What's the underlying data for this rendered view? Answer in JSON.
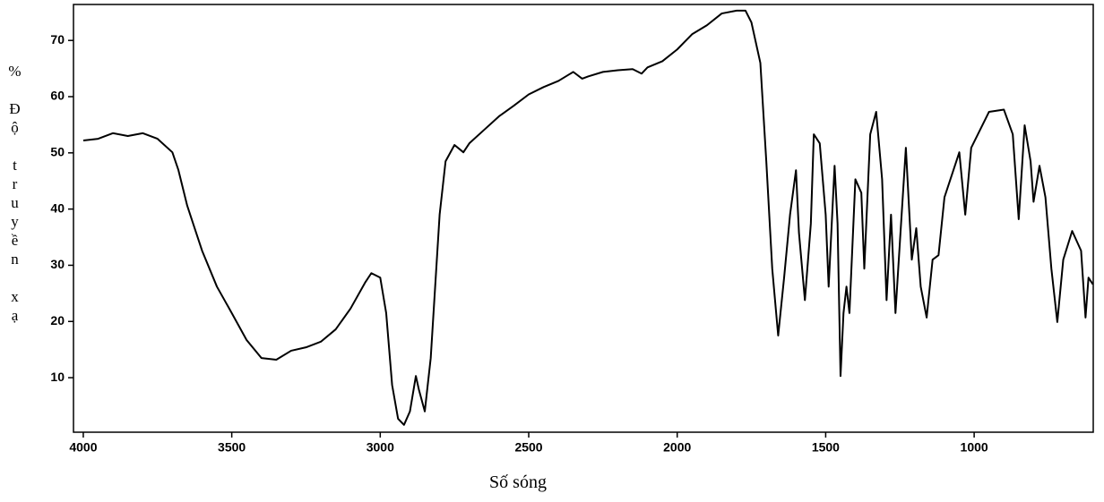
{
  "chart_data": {
    "type": "line",
    "x_label": "Số sóng",
    "y_label": "% Độ truyền xạ",
    "xlim": [
      4033,
      599
    ],
    "ylim": [
      0.3,
      76.4
    ],
    "xticks": [
      4000,
      3500,
      3000,
      2500,
      2000,
      1500,
      1000
    ],
    "yticks": [
      10,
      20,
      30,
      40,
      50,
      60,
      70
    ],
    "series": [
      {
        "color": "#000000",
        "x": [
          4000,
          3950,
          3900,
          3850,
          3800,
          3750,
          3700,
          3680,
          3650,
          3600,
          3550,
          3500,
          3450,
          3400,
          3350,
          3300,
          3250,
          3200,
          3150,
          3100,
          3050,
          3030,
          3000,
          2980,
          2960,
          2940,
          2920,
          2900,
          2880,
          2870,
          2850,
          2830,
          2800,
          2780,
          2750,
          2720,
          2700,
          2650,
          2600,
          2550,
          2500,
          2450,
          2400,
          2350,
          2320,
          2300,
          2250,
          2200,
          2150,
          2120,
          2100,
          2050,
          2000,
          1950,
          1900,
          1850,
          1800,
          1770,
          1750,
          1720,
          1700,
          1680,
          1660,
          1640,
          1620,
          1600,
          1590,
          1570,
          1550,
          1540,
          1520,
          1500,
          1490,
          1470,
          1460,
          1450,
          1440,
          1430,
          1420,
          1400,
          1380,
          1370,
          1350,
          1330,
          1310,
          1295,
          1280,
          1265,
          1250,
          1230,
          1210,
          1195,
          1180,
          1160,
          1140,
          1120,
          1100,
          1050,
          1030,
          1010,
          950,
          900,
          870,
          850,
          830,
          810,
          800,
          780,
          760,
          740,
          720,
          700,
          670,
          640,
          625,
          615,
          600
        ],
        "values": [
          52.2,
          52.5,
          53.5,
          53,
          53.5,
          52.5,
          50.1,
          47,
          40.6,
          32.6,
          26.2,
          21.5,
          16.7,
          13.5,
          13.2,
          14.8,
          15.4,
          16.4,
          18.6,
          22.3,
          27,
          28.6,
          27.8,
          21.5,
          8.7,
          2.7,
          1.6,
          4,
          10.3,
          7.9,
          4,
          13.5,
          39,
          48.5,
          51.4,
          50.1,
          51.7,
          54.1,
          56.5,
          58.4,
          60.4,
          61.7,
          62.8,
          64.4,
          63.2,
          63.6,
          64.4,
          64.7,
          64.9,
          64.1,
          65.2,
          66.3,
          68.4,
          71.1,
          72.7,
          74.8,
          75.3,
          75.3,
          73.2,
          66,
          48.5,
          29.4,
          17.5,
          27.8,
          39,
          46.9,
          35.8,
          23.8,
          37.4,
          53.3,
          51.7,
          39,
          26.2,
          47.7,
          37.4,
          10.3,
          21.5,
          26.2,
          21.5,
          45.3,
          42.9,
          29.4,
          53.3,
          57.3,
          45.3,
          23.8,
          39,
          21.5,
          34.2,
          50.9,
          31,
          36.6,
          26.2,
          20.7,
          31,
          31.8,
          42.1,
          50.1,
          39,
          50.9,
          57.3,
          57.7,
          53.3,
          38.2,
          54.9,
          48.5,
          41.3,
          47.7,
          42.1,
          29.4,
          19.9,
          31,
          36.1,
          32.6,
          20.7,
          27.8,
          26.6
        ]
      }
    ]
  }
}
